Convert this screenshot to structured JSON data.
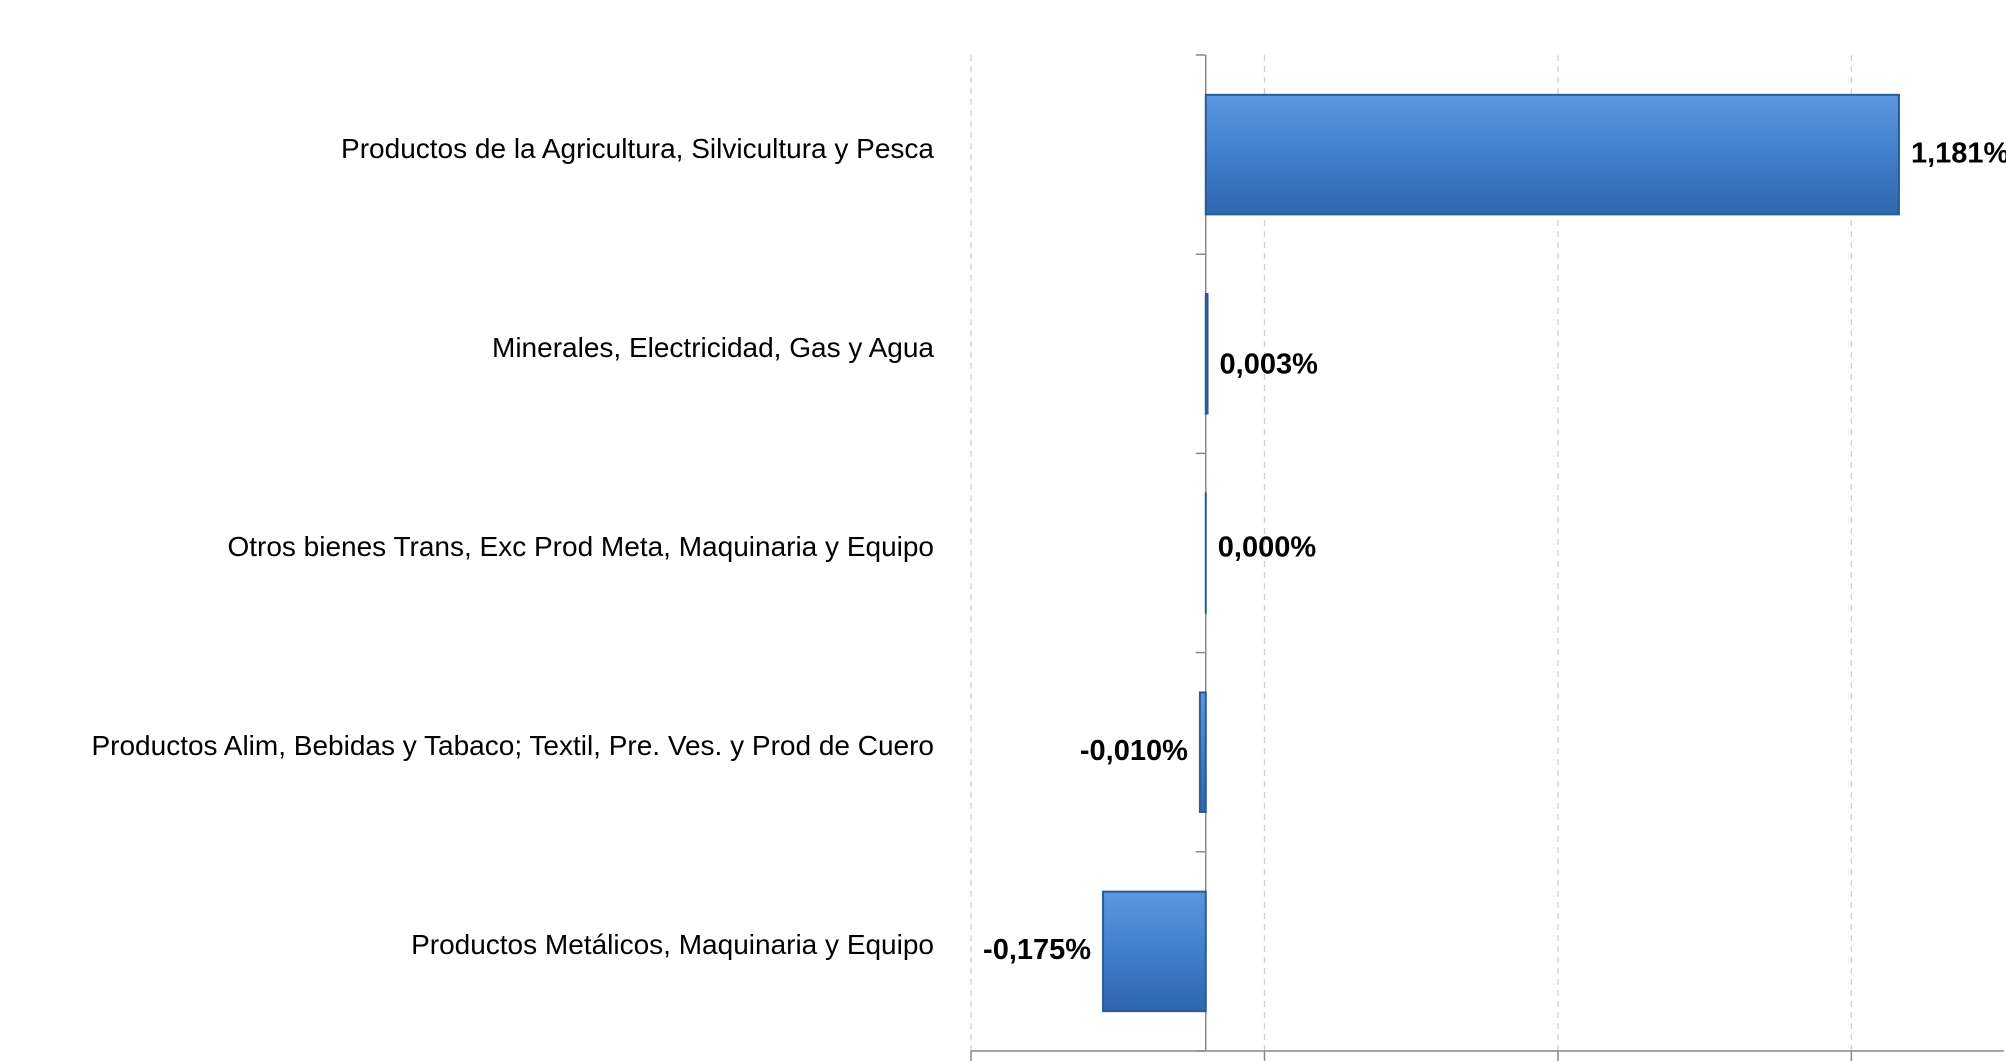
{
  "chart_data": {
    "type": "hbar",
    "categories": [
      "Productos de la Agricultura, Silvicultura y Pesca",
      "Minerales, Electricidad, Gas y Agua",
      "Otros bienes Trans, Exc Prod Meta, Maquinaria y Equipo",
      "Productos  Alim, Bebidas y Tabaco; Textil, Pre. Ves. y Prod de Cuero",
      "Productos Metálicos, Maquinaria y Equipo"
    ],
    "values": [
      1.181,
      0.003,
      0,
      -0.01,
      -0.175
    ],
    "value_labels": [
      "1,181%",
      "0,003%",
      "0,000%",
      "-0,010%",
      "-0,175%"
    ],
    "color": "#4a86d0",
    "xlim": [
      -0.4,
      1.36
    ],
    "xticks": [
      -0.4,
      0.1,
      0.6,
      1.1
    ],
    "grid": true
  }
}
